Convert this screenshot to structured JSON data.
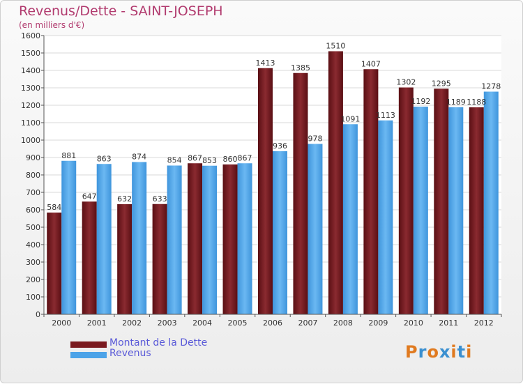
{
  "title": "Revenus/Dette - SAINT-JOSEPH",
  "subtitle": "(en milliers d'€)",
  "legend": [
    {
      "label": "Montant de la Dette",
      "color": "#7a1a1f"
    },
    {
      "label": "Revenus",
      "color": "#4ca3e8"
    }
  ],
  "logo": "Proxiti",
  "colors": {
    "dette": "#7a1a1f",
    "revenus": "#4ca3e8",
    "title": "#b13a6e",
    "logo": [
      "#e07a1f",
      "#3a8fd0",
      "#e07a1f",
      "#3a8fd0",
      "#e07a1f",
      "#3a8fd0",
      "#e07a1f"
    ]
  },
  "chart_data": {
    "type": "bar",
    "title": "Revenus/Dette - SAINT-JOSEPH",
    "subtitle": "(en milliers d'€)",
    "categories": [
      "2000",
      "2001",
      "2002",
      "2003",
      "2004",
      "2005",
      "2006",
      "2007",
      "2008",
      "2009",
      "2010",
      "2011",
      "2012"
    ],
    "series": [
      {
        "name": "Montant de la Dette",
        "values": [
          584,
          647,
          632,
          633,
          867,
          860,
          1413,
          1385,
          1510,
          1407,
          1302,
          1295,
          1188
        ]
      },
      {
        "name": "Revenus",
        "values": [
          881,
          863,
          874,
          854,
          853,
          867,
          936,
          978,
          1091,
          1113,
          1192,
          1189,
          1278
        ]
      }
    ],
    "ylim": [
      0,
      1600
    ],
    "ytick_step": 100,
    "yticks": [
      "0",
      "100",
      "200",
      "300",
      "400",
      "500",
      "600",
      "700",
      "800",
      "900",
      "1000",
      "1100",
      "1200",
      "1300",
      "1400",
      "1500",
      "1600"
    ],
    "grid": true,
    "legend_position": "bottom-left"
  }
}
